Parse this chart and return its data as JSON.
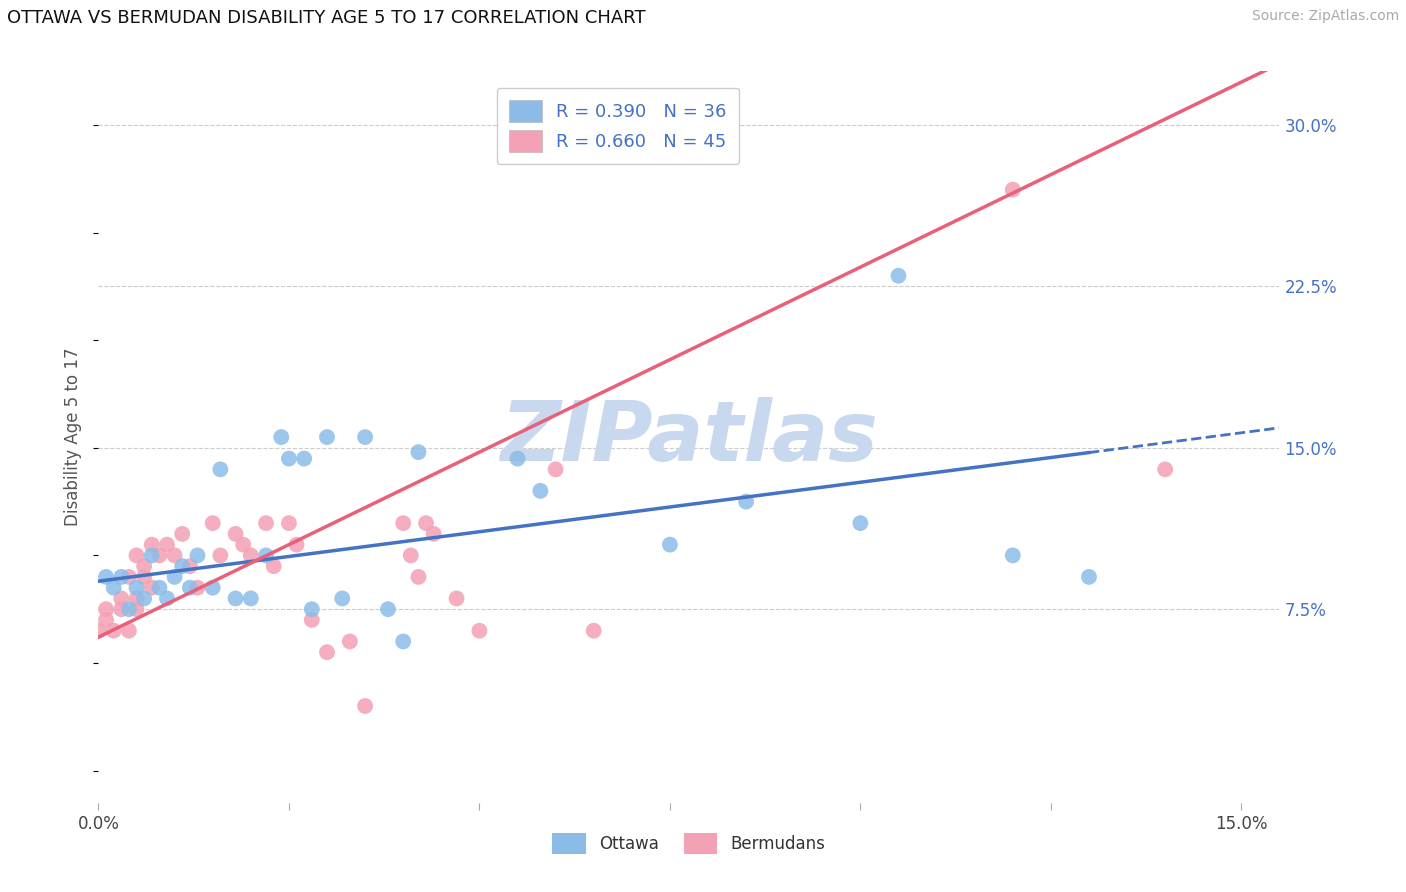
{
  "title": "OTTAWA VS BERMUDAN DISABILITY AGE 5 TO 17 CORRELATION CHART",
  "source": "Source: ZipAtlas.com",
  "ylabel": "Disability Age 5 to 17",
  "xlim": [
    0.0,
    0.155
  ],
  "ylim": [
    -0.015,
    0.325
  ],
  "yticks_right": [
    0.075,
    0.15,
    0.225,
    0.3
  ],
  "yticklabels_right": [
    "7.5%",
    "15.0%",
    "22.5%",
    "30.0%"
  ],
  "xtick_positions": [
    0.0,
    0.025,
    0.05,
    0.075,
    0.1,
    0.125,
    0.15
  ],
  "xticklabels": [
    "0.0%",
    "",
    "",
    "",
    "",
    "",
    "15.0%"
  ],
  "ottawa_R": 0.39,
  "ottawa_N": 36,
  "bermuda_R": 0.66,
  "bermuda_N": 45,
  "ottawa_color": "#8BBCE8",
  "bermuda_color": "#F4A0B5",
  "ottawa_line_color": "#4472C4",
  "bermuda_line_color": "#E8607A",
  "legend_label_ottawa": "Ottawa",
  "legend_label_bermuda": "Bermudans",
  "bg_color": "#FFFFFF",
  "grid_color": "#CCCCCC",
  "watermark": "ZIPatlas",
  "watermark_color": "#C8D8EE",
  "ottawa_x": [
    0.001,
    0.002,
    0.003,
    0.004,
    0.005,
    0.006,
    0.007,
    0.008,
    0.009,
    0.01,
    0.011,
    0.012,
    0.013,
    0.015,
    0.016,
    0.018,
    0.02,
    0.022,
    0.024,
    0.025,
    0.027,
    0.028,
    0.03,
    0.032,
    0.035,
    0.038,
    0.04,
    0.042,
    0.055,
    0.058,
    0.075,
    0.085,
    0.1,
    0.105,
    0.12,
    0.13
  ],
  "ottawa_y": [
    0.09,
    0.085,
    0.09,
    0.075,
    0.085,
    0.08,
    0.1,
    0.085,
    0.08,
    0.09,
    0.095,
    0.085,
    0.1,
    0.085,
    0.14,
    0.08,
    0.08,
    0.1,
    0.155,
    0.145,
    0.145,
    0.075,
    0.155,
    0.08,
    0.155,
    0.075,
    0.06,
    0.148,
    0.145,
    0.13,
    0.105,
    0.125,
    0.115,
    0.23,
    0.1,
    0.09
  ],
  "bermuda_x": [
    0.0,
    0.001,
    0.001,
    0.002,
    0.003,
    0.003,
    0.004,
    0.004,
    0.005,
    0.005,
    0.005,
    0.006,
    0.006,
    0.007,
    0.007,
    0.008,
    0.009,
    0.01,
    0.011,
    0.012,
    0.013,
    0.015,
    0.016,
    0.018,
    0.019,
    0.02,
    0.022,
    0.023,
    0.025,
    0.026,
    0.028,
    0.03,
    0.033,
    0.035,
    0.04,
    0.041,
    0.042,
    0.043,
    0.044,
    0.047,
    0.05,
    0.06,
    0.065,
    0.12,
    0.14
  ],
  "bermuda_y": [
    0.065,
    0.07,
    0.075,
    0.065,
    0.08,
    0.075,
    0.065,
    0.09,
    0.075,
    0.08,
    0.1,
    0.09,
    0.095,
    0.085,
    0.105,
    0.1,
    0.105,
    0.1,
    0.11,
    0.095,
    0.085,
    0.115,
    0.1,
    0.11,
    0.105,
    0.1,
    0.115,
    0.095,
    0.115,
    0.105,
    0.07,
    0.055,
    0.06,
    0.03,
    0.115,
    0.1,
    0.09,
    0.115,
    0.11,
    0.08,
    0.065,
    0.14,
    0.065,
    0.27,
    0.14
  ],
  "ottawa_line_x0": 0.0,
  "ottawa_line_x_solid_end": 0.13,
  "ottawa_line_x_dash_end": 0.155,
  "ottawa_line_y0": 0.088,
  "ottawa_line_slope": 0.46,
  "bermuda_line_x0": 0.0,
  "bermuda_line_x1": 0.155,
  "bermuda_line_y0": 0.062,
  "bermuda_line_slope": 1.72
}
